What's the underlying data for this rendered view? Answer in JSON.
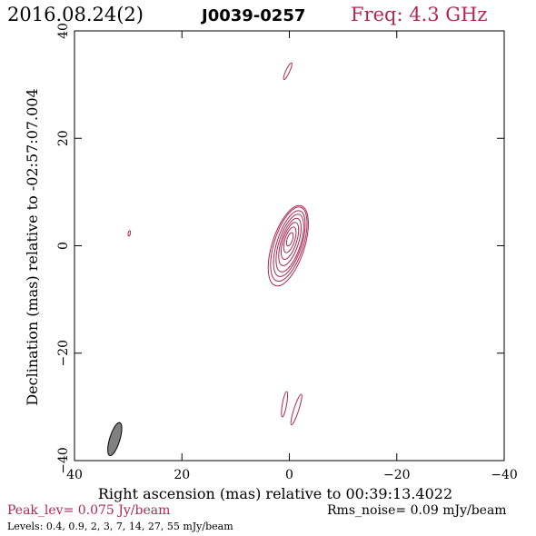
{
  "header": {
    "date": "2016.08.24(2)",
    "source": "J0039-0257",
    "freq": "Freq: 4.3 GHz"
  },
  "footer": {
    "peak": "Peak_lev=  0.075 Jy/beam",
    "rms": "Rms_noise= 0.09 mJy/beam",
    "levels": "Levels: 0.4, 0.9,   2,   3,   7,  14,  27,  55 mJy/beam"
  },
  "colors": {
    "contour": "#b0284e",
    "text_accent": "#b0284e",
    "axis": "#000000",
    "beam_fill": "#808080"
  },
  "chart_data": {
    "type": "contour",
    "xlabel": "Right ascension (mas) relative to 00:39:13.4022",
    "ylabel": "Declination (mas) relative to -02:57:07.004",
    "xlim": [
      40,
      -40
    ],
    "ylim": [
      -40,
      40
    ],
    "x_ticks": [
      40,
      20,
      0,
      -20,
      -40
    ],
    "y_ticks": [
      -40,
      -20,
      0,
      20,
      40
    ],
    "x_tick_labels": [
      "40",
      "20",
      "0",
      "−20",
      "−40"
    ],
    "y_tick_labels": [
      "−40",
      "−20",
      "0",
      "20",
      "40"
    ],
    "contour_levels_mJy": [
      0.4,
      0.9,
      2,
      3,
      7,
      14,
      27,
      55
    ],
    "main_component": {
      "center": [
        0.2,
        0.0
      ],
      "pa_deg": 18,
      "contours": [
        {
          "level": 0.4,
          "major": 7.8,
          "minor": 3.0,
          "dx": 0.0,
          "dy": 0.0
        },
        {
          "level": 0.9,
          "major": 7.2,
          "minor": 2.7,
          "dx": -0.1,
          "dy": 0.3
        },
        {
          "level": 2,
          "major": 6.4,
          "minor": 2.3,
          "dx": -0.2,
          "dy": 0.4
        },
        {
          "level": 3,
          "major": 5.6,
          "minor": 2.0,
          "dx": -0.3,
          "dy": 0.5
        },
        {
          "level": 7,
          "major": 4.6,
          "minor": 1.6,
          "dx": -0.3,
          "dy": 0.7
        },
        {
          "level": 14,
          "major": 3.6,
          "minor": 1.25,
          "dx": -0.3,
          "dy": 0.9
        },
        {
          "level": 27,
          "major": 2.5,
          "minor": 0.9,
          "dx": -0.3,
          "dy": 1.1
        },
        {
          "level": 55,
          "major": 1.3,
          "minor": 0.5,
          "dx": -0.3,
          "dy": 1.2
        }
      ]
    },
    "minor_contours": [
      {
        "x": 0.3,
        "y": 32.5,
        "major": 1.7,
        "minor": 0.35,
        "pa_deg": 25
      },
      {
        "x": 29.8,
        "y": 2.3,
        "major": 0.5,
        "minor": 0.2,
        "pa_deg": 10
      },
      {
        "x": 0.9,
        "y": -29.5,
        "major": 2.4,
        "minor": 0.4,
        "pa_deg": 10
      },
      {
        "x": -1.3,
        "y": -30.5,
        "major": 3.0,
        "minor": 0.45,
        "pa_deg": 18
      }
    ],
    "beam": {
      "x": 32.5,
      "y": -36.0,
      "major": 3.2,
      "minor": 0.95,
      "pa_deg": 17
    }
  }
}
